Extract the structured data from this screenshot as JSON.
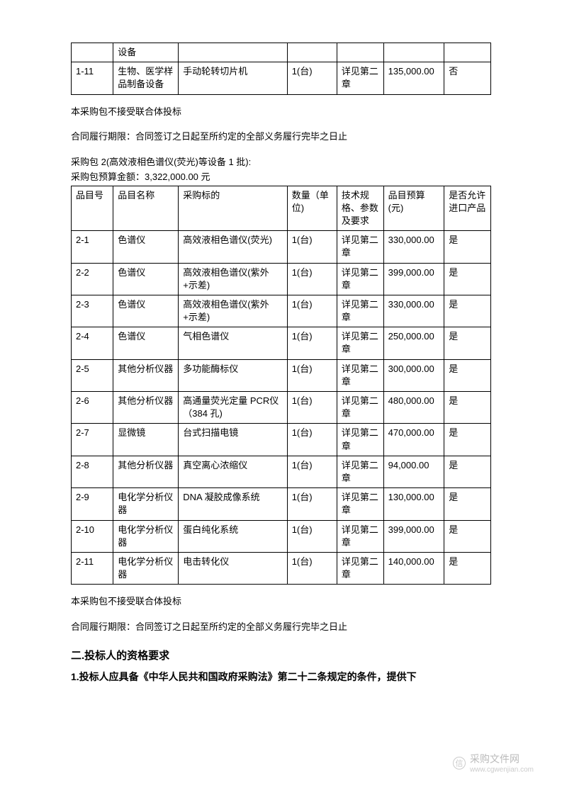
{
  "table1": {
    "rows": [
      [
        "",
        "设备",
        "",
        "",
        "",
        "",
        ""
      ],
      [
        "1-11",
        "生物、医学样品制备设备",
        "手动轮转切片机",
        "1(台)",
        "详见第二章",
        "135,000.00",
        "否"
      ]
    ]
  },
  "para1": "本采购包不接受联合体投标",
  "para2": "合同履行期限：合同签订之日起至所约定的全部义务履行完毕之日止",
  "para3": "采购包 2(高效液相色谱仪(荧光)等设备 1 批):",
  "para4": "采购包预算金额：3,322,000.00 元",
  "table2": {
    "header": [
      "品目号",
      "品目名称",
      "采购标的",
      "数量（单位)",
      "技术规格、参数及要求",
      "品目预算(元)",
      "是否允许进口产品"
    ],
    "rows": [
      [
        "2-1",
        "色谱仪",
        "高效液相色谱仪(荧光)",
        "1(台)",
        "详见第二章",
        "330,000.00",
        "是"
      ],
      [
        "2-2",
        "色谱仪",
        "高效液相色谱仪(紫外+示差)",
        "1(台)",
        "详见第二章",
        "399,000.00",
        "是"
      ],
      [
        "2-3",
        "色谱仪",
        "高效液相色谱仪(紫外+示差)",
        "1(台)",
        "详见第二章",
        "330,000.00",
        "是"
      ],
      [
        "2-4",
        "色谱仪",
        "气相色谱仪",
        "1(台)",
        "详见第二章",
        "250,000.00",
        "是"
      ],
      [
        "2-5",
        "其他分析仪器",
        "多功能酶标仪",
        "1(台)",
        "详见第二章",
        "300,000.00",
        "是"
      ],
      [
        "2-6",
        "其他分析仪器",
        "高通量荧光定量 PCR仪（384 孔)",
        "1(台)",
        "详见第二章",
        "480,000.00",
        "是"
      ],
      [
        "2-7",
        "显微镜",
        "台式扫描电镜",
        "1(台)",
        "详见第二章",
        "470,000.00",
        "是"
      ],
      [
        "2-8",
        "其他分析仪器",
        "真空离心浓缩仪",
        "1(台)",
        "详见第二章",
        "94,000.00",
        "是"
      ],
      [
        "2-9",
        "电化学分析仪器",
        "DNA 凝胶成像系统",
        "1(台)",
        "详见第二章",
        "130,000.00",
        "是"
      ],
      [
        "2-10",
        "电化学分析仪器",
        "蛋白纯化系统",
        "1(台)",
        "详见第二章",
        "399,000.00",
        "是"
      ],
      [
        "2-11",
        "电化学分析仪器",
        "电击转化仪",
        "1(台)",
        "详见第二章",
        "140,000.00",
        "是"
      ]
    ]
  },
  "para5": "本采购包不接受联合体投标",
  "para6": "合同履行期限：合同签订之日起至所约定的全部义务履行完毕之日止",
  "section2_title": "二.投标人的资格要求",
  "section2_para": "1.投标人应具备《中华人民共和国政府采购法》第二十二条规定的条件，提供下",
  "watermark": {
    "text1": "采购文件网",
    "text2": "www.cgwenjian.com",
    "icon": "信"
  }
}
